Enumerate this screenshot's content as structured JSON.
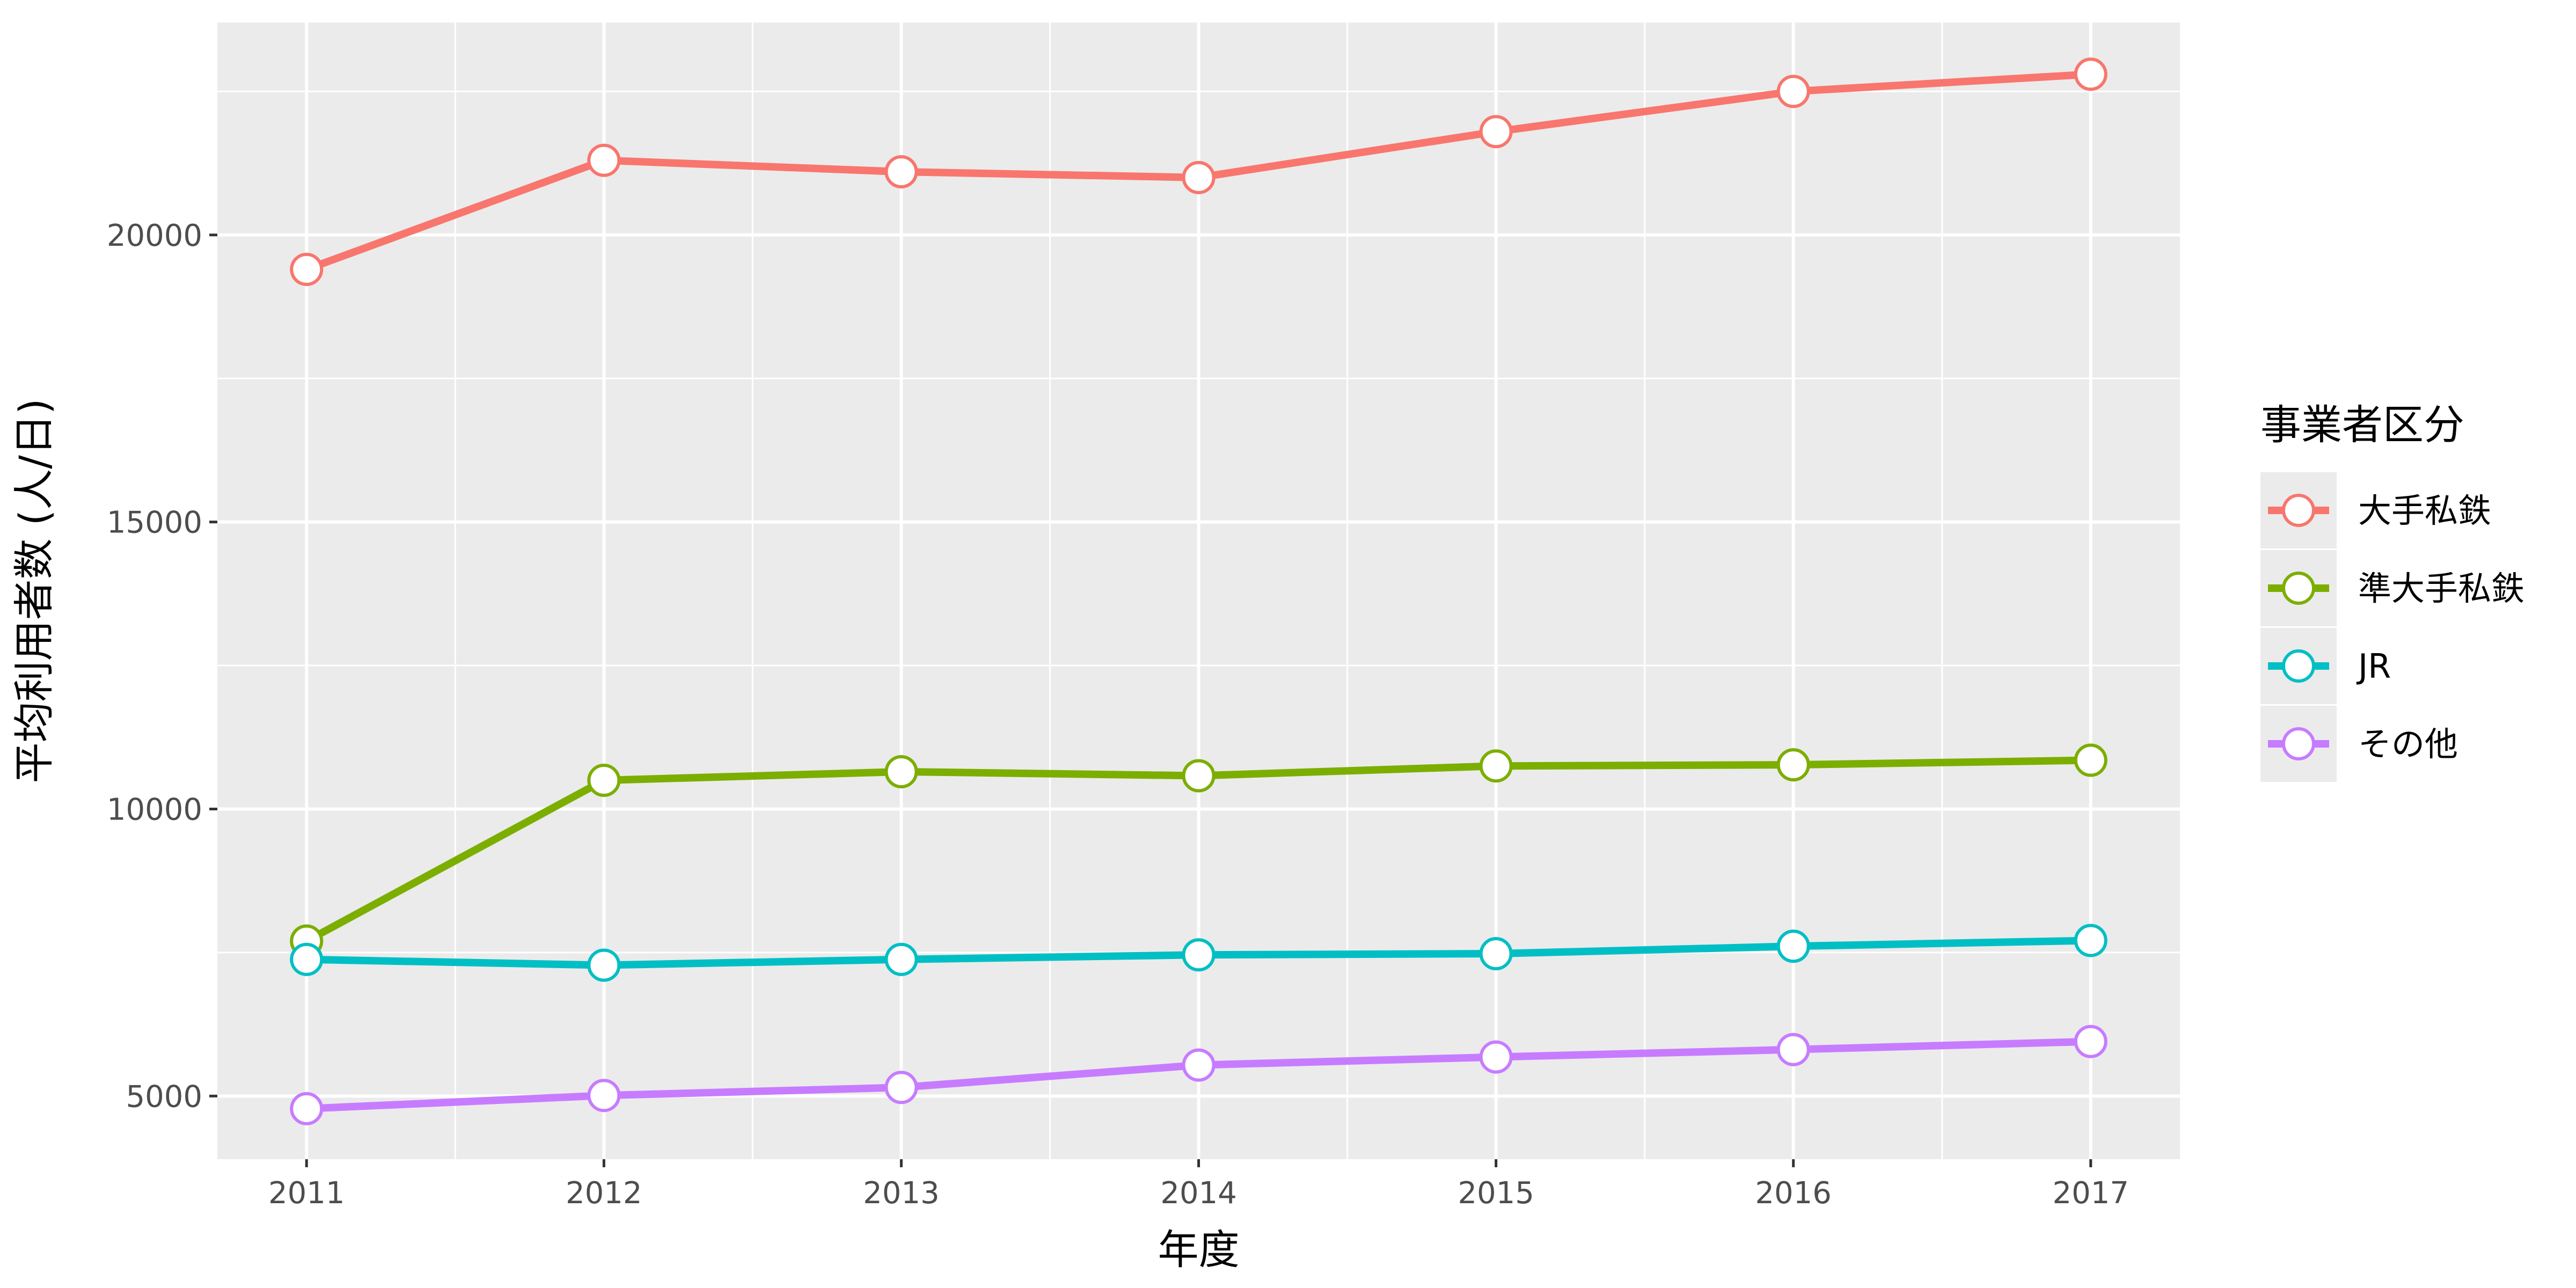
{
  "chart_data": {
    "type": "line",
    "xlabel": "年度",
    "ylabel": "平均利用者数 (人/日)",
    "x": [
      2011,
      2012,
      2013,
      2014,
      2015,
      2016,
      2017
    ],
    "yticks": [
      5000,
      10000,
      15000,
      20000
    ],
    "xlim": [
      2010.7,
      2017.3
    ],
    "ylim": [
      3900,
      23700
    ],
    "grid": true,
    "legend_position": "right",
    "legend_title": "事業者区分",
    "series": [
      {
        "name": "大手私鉄",
        "color": "#F8766D",
        "values": [
          19400,
          21300,
          21100,
          21000,
          21800,
          22500,
          22800
        ]
      },
      {
        "name": "準大手私鉄",
        "color": "#7CAE00",
        "values": [
          7700,
          10500,
          10650,
          10580,
          10750,
          10770,
          10850
        ]
      },
      {
        "name": "JR",
        "color": "#00BFC4",
        "values": [
          7380,
          7280,
          7380,
          7460,
          7480,
          7610,
          7710
        ]
      },
      {
        "name": "その他",
        "color": "#C77CFF",
        "values": [
          4780,
          5010,
          5150,
          5540,
          5680,
          5810,
          5950
        ]
      }
    ]
  }
}
